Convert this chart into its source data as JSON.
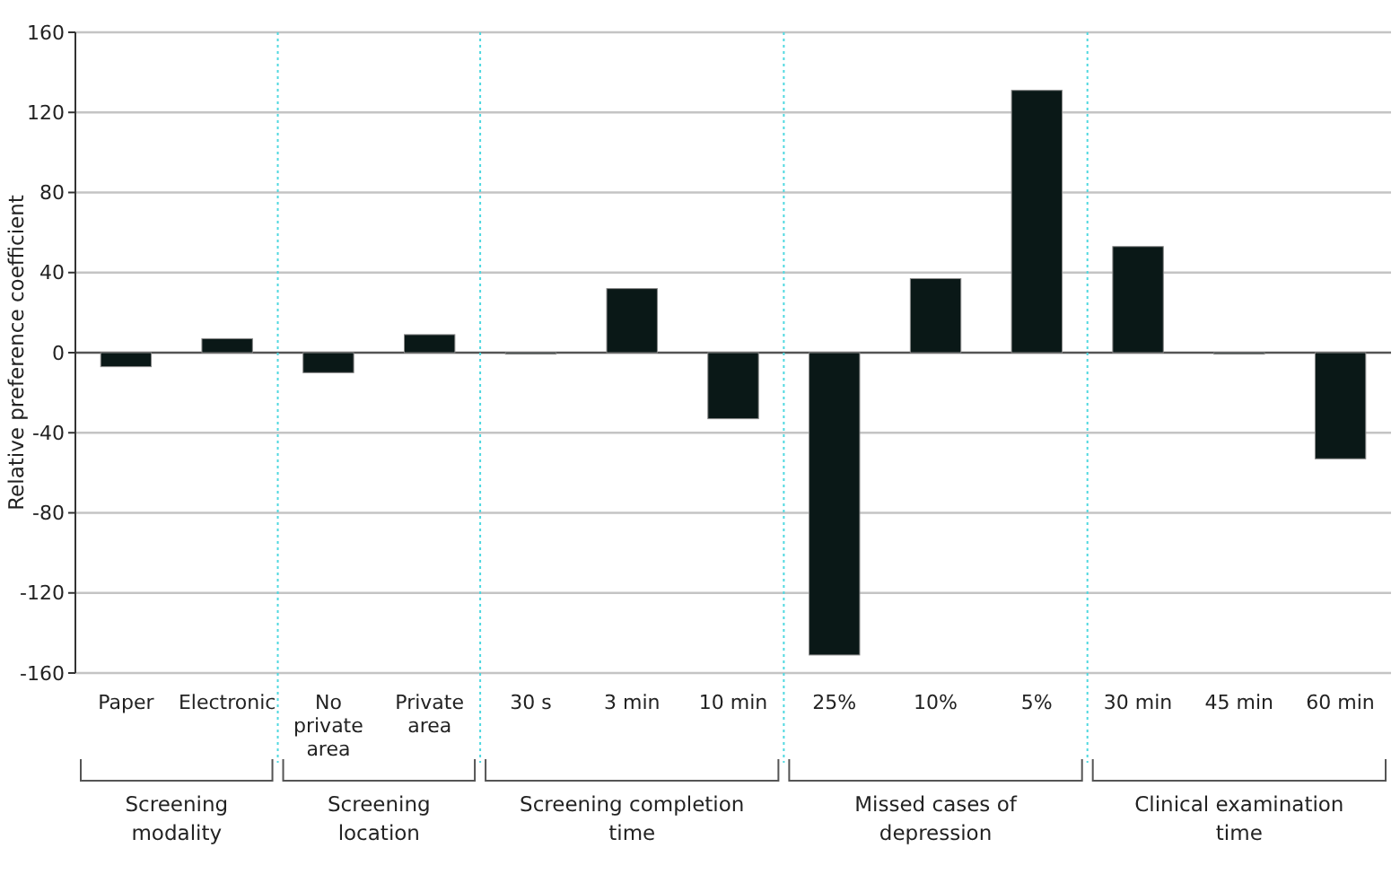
{
  "chart_data": {
    "type": "bar",
    "ylabel": "Relative preference coefficient",
    "categories": [
      "Paper",
      "Electronic",
      "No private area",
      "Private area",
      "30 s",
      "3 min",
      "10 min",
      "25%",
      "10%",
      "5%",
      "30 min",
      "45 min",
      "60 min"
    ],
    "values": [
      -7,
      7,
      -10,
      9,
      0,
      32,
      -33,
      -151,
      37,
      131,
      53,
      0,
      -53
    ],
    "color": "#0a1817",
    "ylim": [
      -160,
      160
    ],
    "yticks": [
      -160,
      -120,
      -80,
      -40,
      0,
      40,
      80,
      120,
      160
    ],
    "grid": "y",
    "annotations": [
      "Screening modality",
      "Screening location",
      "Screening completion time",
      "Missed cases of depression",
      "Clinical examination time"
    ]
  }
}
